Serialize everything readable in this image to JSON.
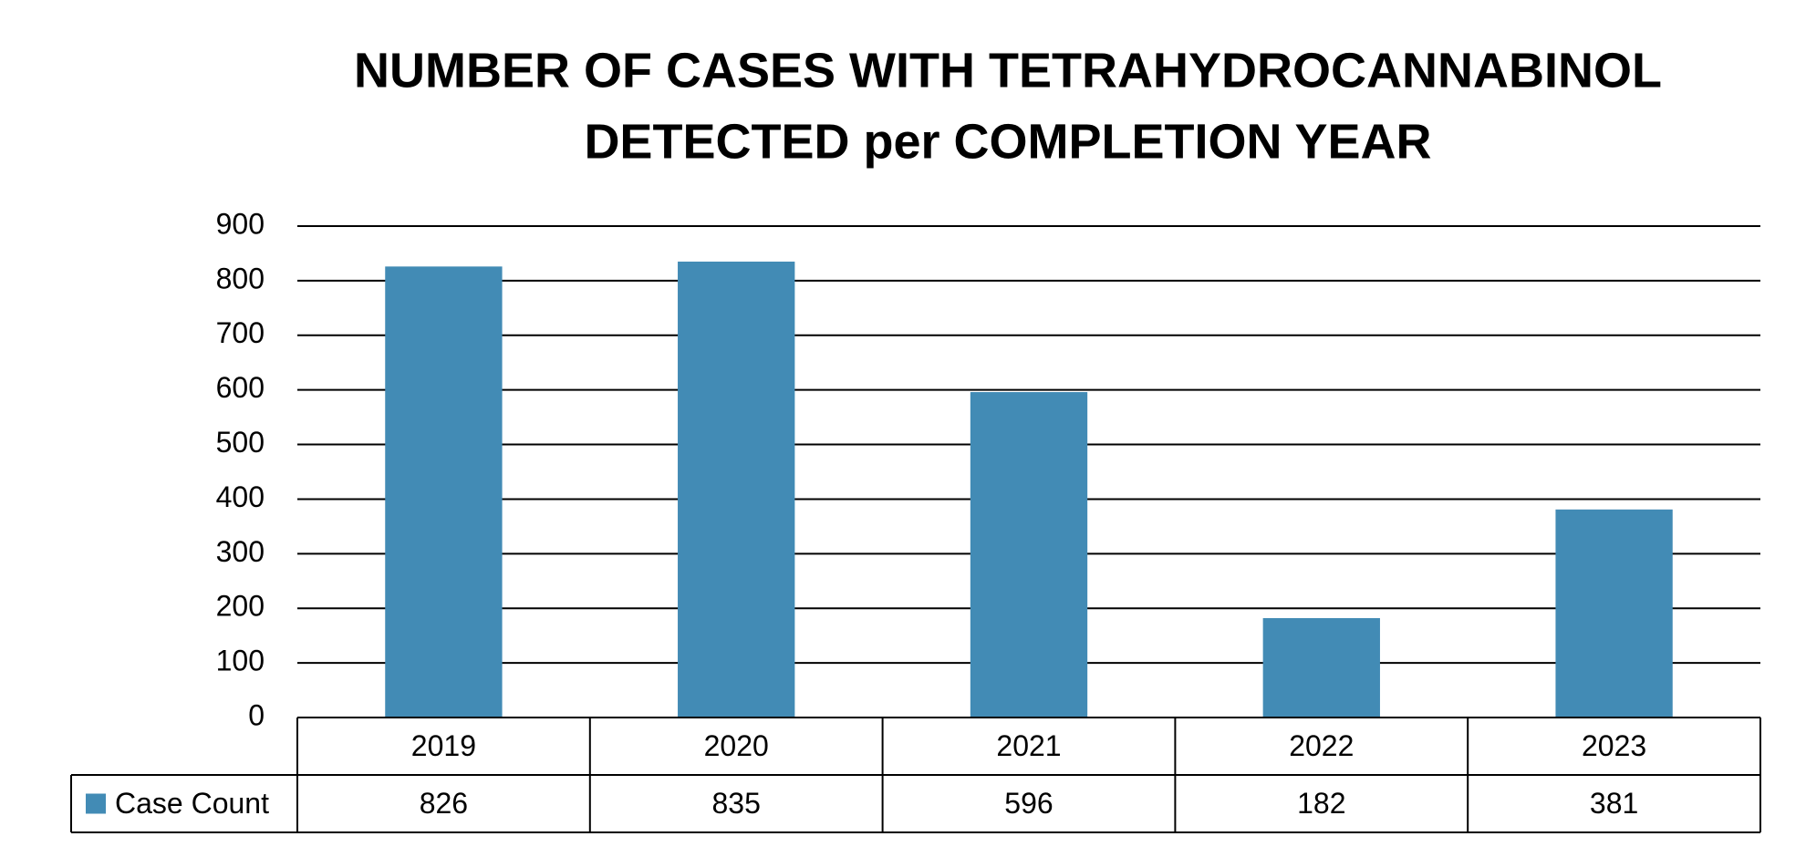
{
  "chart_data": {
    "type": "bar",
    "title": [
      "NUMBER OF CASES WITH TETRAHYDROCANNABINOL",
      "DETECTED per COMPLETION YEAR"
    ],
    "categories": [
      "2019",
      "2020",
      "2021",
      "2022",
      "2023"
    ],
    "series": [
      {
        "name": "Case Count",
        "color": "#428bb5",
        "values": [
          826,
          835,
          596,
          182,
          381
        ]
      }
    ],
    "ylim": [
      0,
      900
    ],
    "yticks": [
      0,
      100,
      200,
      300,
      400,
      500,
      600,
      700,
      800,
      900
    ],
    "grid": true,
    "data_table": true
  }
}
